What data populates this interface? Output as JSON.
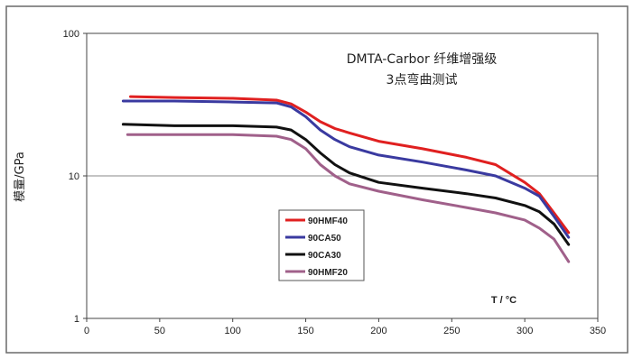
{
  "chart_data": {
    "type": "line",
    "title_line1": "DMTA-Carbor 纤维增强级",
    "title_line2": "3点弯曲测试",
    "ylabel": "模量/GPa",
    "xlabel": "T / °C",
    "xlim": [
      0,
      350
    ],
    "ylim": [
      1,
      100
    ],
    "y_scale": "log",
    "x_ticks": [
      0,
      50,
      100,
      150,
      200,
      250,
      300,
      350
    ],
    "x_tick_labels": [
      "0",
      "50",
      "100",
      "150",
      "200",
      "250",
      "300",
      "350"
    ],
    "y_ticks": [
      1,
      10,
      100
    ],
    "y_tick_labels": [
      "1",
      "10",
      "100"
    ],
    "grid": "horizontal",
    "legend_position": "lower-left-center",
    "series": [
      {
        "name": "90HMF40",
        "color": "#e02020",
        "x": [
          30,
          60,
          100,
          130,
          140,
          150,
          160,
          170,
          180,
          200,
          230,
          260,
          280,
          300,
          310,
          320,
          330
        ],
        "y": [
          36,
          35.5,
          35,
          34,
          32,
          28,
          24,
          21.5,
          20,
          17.5,
          15.5,
          13.5,
          12,
          9,
          7.5,
          5.5,
          4.0
        ]
      },
      {
        "name": "90CA50",
        "color": "#3a3aa0",
        "x": [
          25,
          60,
          100,
          130,
          140,
          150,
          160,
          170,
          180,
          200,
          230,
          260,
          280,
          300,
          310,
          320,
          330
        ],
        "y": [
          33.5,
          33.5,
          33,
          32.5,
          30.5,
          26,
          21,
          18,
          16,
          14,
          12.5,
          11,
          10,
          8.2,
          7.2,
          5.2,
          3.7
        ]
      },
      {
        "name": "90CA30",
        "color": "#111111",
        "x": [
          25,
          60,
          100,
          130,
          140,
          150,
          160,
          170,
          180,
          200,
          230,
          260,
          280,
          300,
          310,
          320,
          330
        ],
        "y": [
          23,
          22.5,
          22.5,
          22,
          21,
          18,
          14.5,
          12,
          10.5,
          9,
          8.2,
          7.5,
          7,
          6.2,
          5.6,
          4.6,
          3.3
        ]
      },
      {
        "name": "90HMF20",
        "color": "#a0608a",
        "x": [
          28,
          60,
          100,
          130,
          140,
          150,
          160,
          170,
          180,
          200,
          230,
          260,
          280,
          300,
          310,
          320,
          330
        ],
        "y": [
          19.5,
          19.5,
          19.5,
          19,
          18,
          15.5,
          12,
          10,
          8.8,
          7.8,
          6.8,
          6.0,
          5.5,
          4.9,
          4.3,
          3.6,
          2.5
        ]
      }
    ]
  }
}
